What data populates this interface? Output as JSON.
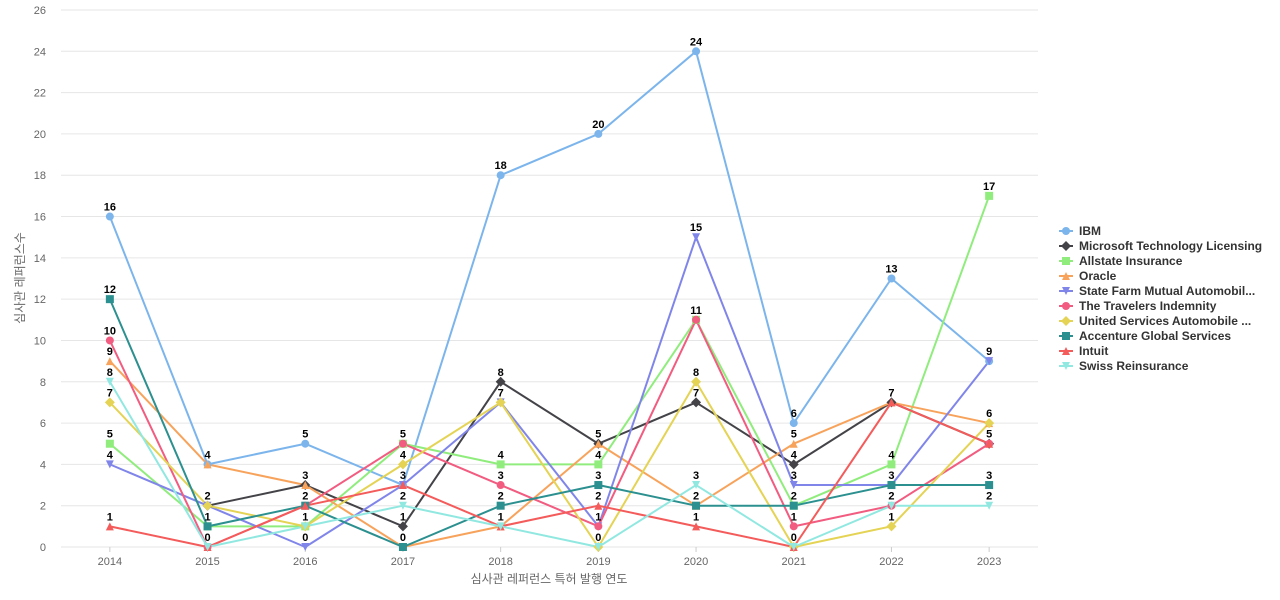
{
  "chart_data": {
    "type": "line",
    "xlabel": "심사관 레퍼런스 특허 발행 연도",
    "ylabel": "심사관 레퍼런스수",
    "ylim": [
      0,
      26
    ],
    "yticks": [
      0,
      2,
      4,
      6,
      8,
      10,
      12,
      14,
      16,
      18,
      20,
      22,
      24,
      26
    ],
    "categories": [
      "2014",
      "2015",
      "2016",
      "2017",
      "2018",
      "2019",
      "2020",
      "2021",
      "2022",
      "2023"
    ],
    "grid": true,
    "legend_position": "right",
    "series": [
      {
        "name": "IBM",
        "color": "#7cb5ec",
        "marker": "circle",
        "values": [
          16,
          4,
          5,
          3,
          18,
          20,
          24,
          6,
          13,
          9
        ]
      },
      {
        "name": "Microsoft Technology Licensing",
        "color": "#434348",
        "marker": "diamond",
        "values": [
          null,
          2,
          3,
          1,
          8,
          5,
          7,
          4,
          7,
          5
        ]
      },
      {
        "name": "Allstate Insurance",
        "color": "#90ed7d",
        "marker": "square",
        "values": [
          5,
          1,
          1,
          5,
          4,
          4,
          11,
          2,
          4,
          17
        ]
      },
      {
        "name": "Oracle",
        "color": "#f7a35c",
        "marker": "triangle",
        "values": [
          9,
          4,
          3,
          0,
          1,
          5,
          2,
          5,
          7,
          6
        ]
      },
      {
        "name": "State Farm Mutual Automobil...",
        "color": "#8085e9",
        "marker": "triangle-down",
        "values": [
          4,
          2,
          0,
          3,
          7,
          1,
          15,
          3,
          3,
          9
        ]
      },
      {
        "name": "The Travelers Indemnity",
        "color": "#f15c80",
        "marker": "circle",
        "values": [
          10,
          0,
          2,
          5,
          3,
          1,
          11,
          1,
          2,
          5
        ]
      },
      {
        "name": "United Services Automobile ...",
        "color": "#e4d354",
        "marker": "diamond",
        "values": [
          7,
          2,
          1,
          4,
          7,
          0,
          8,
          0,
          1,
          6
        ]
      },
      {
        "name": "Accenture Global Services",
        "color": "#2b908f",
        "marker": "square",
        "values": [
          12,
          1,
          2,
          0,
          2,
          3,
          2,
          2,
          3,
          3
        ]
      },
      {
        "name": "Intuit",
        "color": "#f45b5b",
        "marker": "triangle",
        "values": [
          1,
          0,
          2,
          3,
          1,
          2,
          1,
          0,
          7,
          5
        ]
      },
      {
        "name": "Swiss Reinsurance",
        "color": "#91e8e1",
        "marker": "triangle-down",
        "values": [
          8,
          0,
          1,
          2,
          1,
          0,
          3,
          0,
          2,
          2
        ]
      }
    ],
    "data_labels": [
      {
        "category": "2014",
        "value": 16,
        "text": "16"
      },
      {
        "category": "2014",
        "value": 12,
        "text": "12"
      },
      {
        "category": "2014",
        "value": 10,
        "text": "10"
      },
      {
        "category": "2014",
        "value": 9,
        "text": "9"
      },
      {
        "category": "2014",
        "value": 8,
        "text": "8"
      },
      {
        "category": "2014",
        "value": 7,
        "text": "7"
      },
      {
        "category": "2014",
        "value": 5,
        "text": "5"
      },
      {
        "category": "2014",
        "value": 4,
        "text": "4"
      },
      {
        "category": "2014",
        "value": 1,
        "text": "1"
      },
      {
        "category": "2015",
        "value": 4,
        "text": "4"
      },
      {
        "category": "2015",
        "value": 2,
        "text": "2"
      },
      {
        "category": "2015",
        "value": 1,
        "text": "1"
      },
      {
        "category": "2015",
        "value": 0,
        "text": "0"
      },
      {
        "category": "2016",
        "value": 5,
        "text": "5"
      },
      {
        "category": "2016",
        "value": 3,
        "text": "3"
      },
      {
        "category": "2016",
        "value": 2,
        "text": "2"
      },
      {
        "category": "2016",
        "value": 1,
        "text": "1"
      },
      {
        "category": "2016",
        "value": 0,
        "text": "0"
      },
      {
        "category": "2017",
        "value": 5,
        "text": "5"
      },
      {
        "category": "2017",
        "value": 4,
        "text": "4"
      },
      {
        "category": "2017",
        "value": 3,
        "text": "3"
      },
      {
        "category": "2017",
        "value": 2,
        "text": "2"
      },
      {
        "category": "2017",
        "value": 1,
        "text": "1"
      },
      {
        "category": "2017",
        "value": 0,
        "text": "0"
      },
      {
        "category": "2018",
        "value": 18,
        "text": "18"
      },
      {
        "category": "2018",
        "value": 8,
        "text": "8"
      },
      {
        "category": "2018",
        "value": 7,
        "text": "7"
      },
      {
        "category": "2018",
        "value": 4,
        "text": "4"
      },
      {
        "category": "2018",
        "value": 3,
        "text": "3"
      },
      {
        "category": "2018",
        "value": 2,
        "text": "2"
      },
      {
        "category": "2018",
        "value": 1,
        "text": "1"
      },
      {
        "category": "2019",
        "value": 20,
        "text": "20"
      },
      {
        "category": "2019",
        "value": 5,
        "text": "5"
      },
      {
        "category": "2019",
        "value": 4,
        "text": "4"
      },
      {
        "category": "2019",
        "value": 3,
        "text": "3"
      },
      {
        "category": "2019",
        "value": 2,
        "text": "2"
      },
      {
        "category": "2019",
        "value": 1,
        "text": "1"
      },
      {
        "category": "2019",
        "value": 0,
        "text": "0"
      },
      {
        "category": "2020",
        "value": 24,
        "text": "24"
      },
      {
        "category": "2020",
        "value": 15,
        "text": "15"
      },
      {
        "category": "2020",
        "value": 11,
        "text": "11"
      },
      {
        "category": "2020",
        "value": 8,
        "text": "8"
      },
      {
        "category": "2020",
        "value": 7,
        "text": "7"
      },
      {
        "category": "2020",
        "value": 3,
        "text": "3"
      },
      {
        "category": "2020",
        "value": 2,
        "text": "2"
      },
      {
        "category": "2020",
        "value": 1,
        "text": "1"
      },
      {
        "category": "2021",
        "value": 6,
        "text": "6"
      },
      {
        "category": "2021",
        "value": 5,
        "text": "5"
      },
      {
        "category": "2021",
        "value": 4,
        "text": "4"
      },
      {
        "category": "2021",
        "value": 3,
        "text": "3"
      },
      {
        "category": "2021",
        "value": 2,
        "text": "2"
      },
      {
        "category": "2021",
        "value": 1,
        "text": "1"
      },
      {
        "category": "2021",
        "value": 0,
        "text": "0"
      },
      {
        "category": "2022",
        "value": 13,
        "text": "13"
      },
      {
        "category": "2022",
        "value": 7,
        "text": "7"
      },
      {
        "category": "2022",
        "value": 4,
        "text": "4"
      },
      {
        "category": "2022",
        "value": 3,
        "text": "3"
      },
      {
        "category": "2022",
        "value": 2,
        "text": "2"
      },
      {
        "category": "2022",
        "value": 1,
        "text": "1"
      },
      {
        "category": "2023",
        "value": 17,
        "text": "17"
      },
      {
        "category": "2023",
        "value": 9,
        "text": "9"
      },
      {
        "category": "2023",
        "value": 6,
        "text": "6"
      },
      {
        "category": "2023",
        "value": 5,
        "text": "5"
      },
      {
        "category": "2023",
        "value": 3,
        "text": "3"
      },
      {
        "category": "2023",
        "value": 2,
        "text": "2"
      }
    ]
  }
}
